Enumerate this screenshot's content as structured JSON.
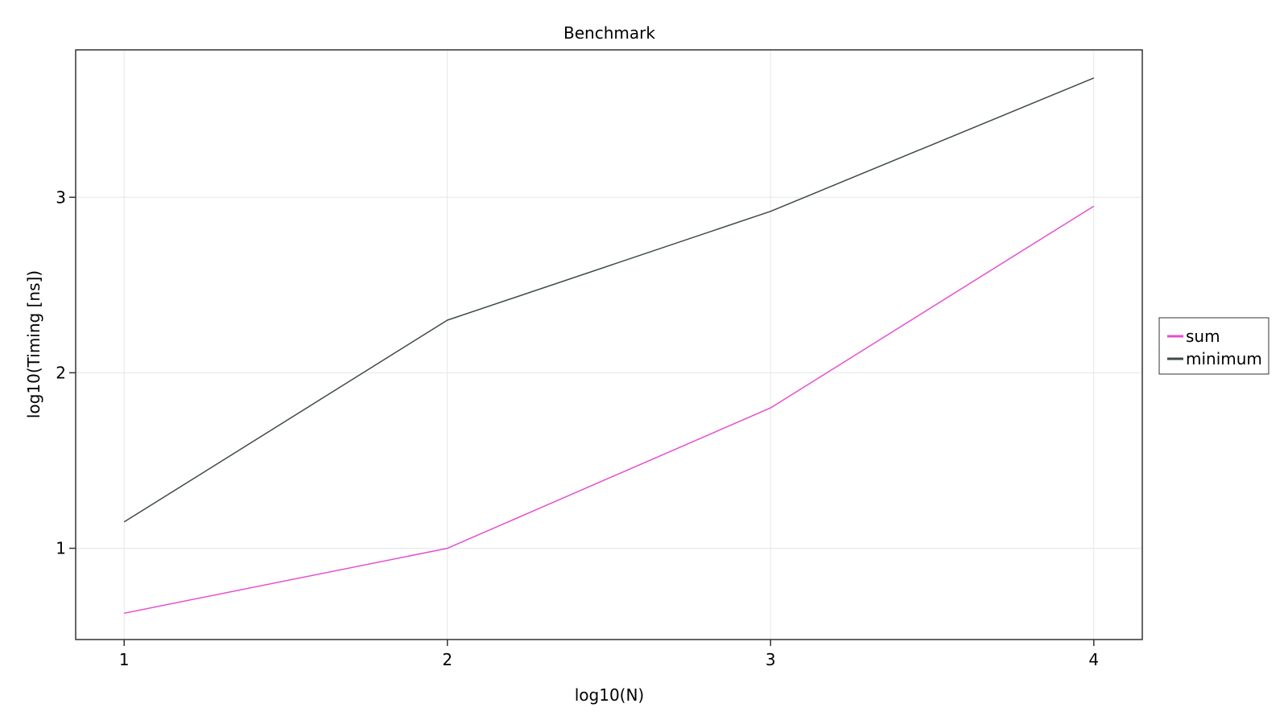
{
  "chart_data": {
    "type": "line",
    "title": "Benchmark",
    "xlabel": "log10(N)",
    "ylabel": "log10(Timing [ns])",
    "x": [
      1,
      2,
      3,
      4
    ],
    "xticks": [
      1,
      2,
      3,
      4
    ],
    "yticks": [
      1,
      2,
      3
    ],
    "xlim": [
      0.85,
      4.15
    ],
    "ylim": [
      0.48,
      3.84
    ],
    "grid": true,
    "legend_position": "right",
    "series": [
      {
        "name": "sum",
        "color": "#e44fd0",
        "values": [
          0.63,
          1.0,
          1.8,
          2.95
        ]
      },
      {
        "name": "minimum",
        "color": "#3f4a45",
        "values": [
          1.15,
          2.3,
          2.92,
          3.68
        ]
      }
    ]
  }
}
